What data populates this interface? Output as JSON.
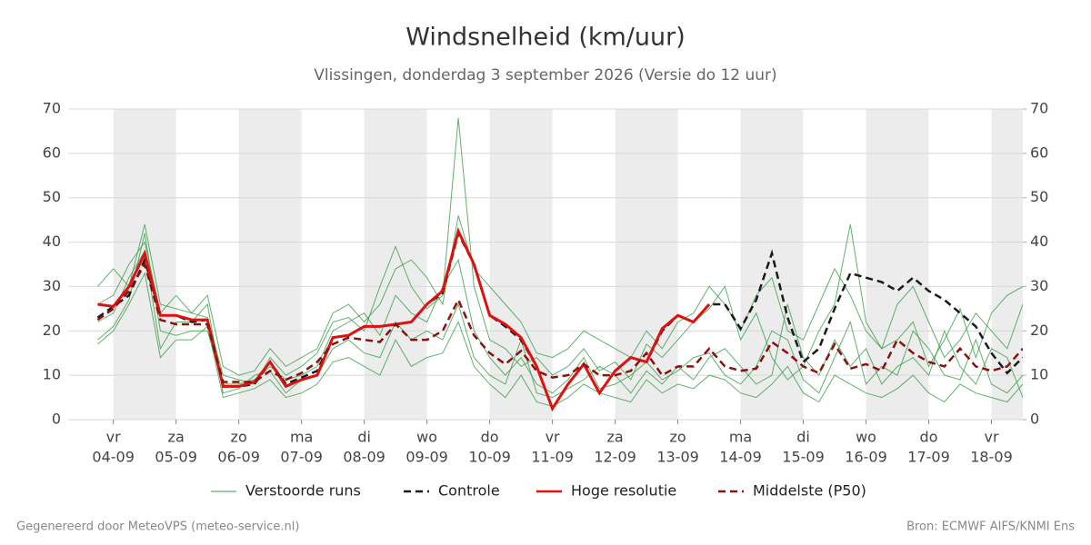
{
  "chart_data": {
    "type": "line",
    "title": "Windsnelheid (km/uur)",
    "subtitle": "Vlissingen, donderdag  3 september 2026 (Versie do 12 uur)",
    "x": [
      -0.25,
      0,
      0.25,
      0.5,
      0.75,
      1,
      1.25,
      1.5,
      1.75,
      2,
      2.25,
      2.5,
      2.75,
      3,
      3.25,
      3.5,
      3.75,
      4,
      4.25,
      4.5,
      4.75,
      5,
      5.25,
      5.5,
      5.75,
      6,
      6.25,
      6.5,
      6.75,
      7,
      7.25,
      7.5,
      7.75,
      8,
      8.25,
      8.5,
      8.75,
      9,
      9.25,
      9.5,
      9.75,
      10,
      10.25,
      10.5,
      10.75,
      11,
      11.25,
      11.5,
      11.75,
      12,
      12.25,
      12.5,
      12.75,
      13,
      13.25,
      13.5,
      13.75,
      14,
      14.25,
      14.5
    ],
    "xlim": [
      -0.72,
      14.5
    ],
    "xticks": [
      {
        "value": 0,
        "label": [
          "vr",
          "04-09"
        ]
      },
      {
        "value": 1,
        "label": [
          "za",
          "05-09"
        ]
      },
      {
        "value": 2,
        "label": [
          "zo",
          "06-09"
        ]
      },
      {
        "value": 3,
        "label": [
          "ma",
          "07-09"
        ]
      },
      {
        "value": 4,
        "label": [
          "di",
          "08-09"
        ]
      },
      {
        "value": 5,
        "label": [
          "wo",
          "09-09"
        ]
      },
      {
        "value": 6,
        "label": [
          "do",
          "10-09"
        ]
      },
      {
        "value": 7,
        "label": [
          "vr",
          "11-09"
        ]
      },
      {
        "value": 8,
        "label": [
          "za",
          "12-09"
        ]
      },
      {
        "value": 9,
        "label": [
          "zo",
          "13-09"
        ]
      },
      {
        "value": 10,
        "label": [
          "ma",
          "14-09"
        ]
      },
      {
        "value": 11,
        "label": [
          "di",
          "15-09"
        ]
      },
      {
        "value": 12,
        "label": [
          "wo",
          "16-09"
        ]
      },
      {
        "value": 13,
        "label": [
          "do",
          "17-09"
        ]
      },
      {
        "value": 14,
        "label": [
          "vr",
          "18-09"
        ]
      }
    ],
    "shade_alternate_days": true,
    "ylim": [
      0,
      70
    ],
    "yticks": [
      0,
      10,
      20,
      30,
      40,
      50,
      60,
      70
    ],
    "y2lim": [
      0,
      70
    ],
    "y2ticks": [
      0,
      10,
      20,
      30,
      40,
      50,
      60,
      70
    ],
    "grid": true,
    "ensemble": {
      "name": "Verstoorde runs",
      "color": "#3a9e48",
      "runs": [
        [
          18,
          21,
          27,
          42,
          20,
          19,
          20,
          20,
          8,
          8,
          9,
          12,
          9,
          10,
          12,
          20,
          22,
          24,
          19,
          28,
          24,
          22,
          30,
          36,
          20,
          14,
          10,
          14,
          8,
          6,
          9,
          14,
          7,
          8,
          10,
          13,
          9,
          11,
          14,
          15,
          10,
          8,
          12,
          20,
          18,
          9,
          6,
          14,
          22,
          8,
          12,
          10,
          20,
          16,
          10,
          9,
          18,
          8,
          6,
          10
        ],
        [
          30,
          34,
          30,
          44,
          26,
          25,
          24,
          23,
          10,
          9,
          8,
          14,
          10,
          12,
          15,
          22,
          23,
          20,
          30,
          39,
          30,
          25,
          28,
          68,
          30,
          18,
          16,
          12,
          14,
          10,
          12,
          16,
          11,
          13,
          9,
          17,
          14,
          18,
          22,
          25,
          30,
          18,
          24,
          14,
          9,
          12,
          20,
          26,
          44,
          22,
          16,
          18,
          22,
          12,
          18,
          25,
          14,
          24,
          28,
          30
        ],
        [
          22,
          24,
          32,
          38,
          16,
          22,
          22,
          26,
          6,
          7,
          10,
          11,
          6,
          9,
          10,
          16,
          18,
          15,
          14,
          22,
          18,
          20,
          18,
          26,
          14,
          10,
          8,
          18,
          6,
          5,
          7,
          9,
          12,
          10,
          6,
          11,
          8,
          12,
          9,
          14,
          16,
          12,
          8,
          10,
          26,
          14,
          10,
          18,
          12,
          16,
          8,
          12,
          14,
          10,
          20,
          12,
          8,
          16,
          14,
          5
        ],
        [
          26,
          28,
          35,
          40,
          24,
          28,
          24,
          28,
          12,
          10,
          11,
          16,
          12,
          14,
          16,
          24,
          26,
          22,
          26,
          34,
          36,
          32,
          26,
          46,
          34,
          30,
          26,
          22,
          15,
          14,
          16,
          20,
          18,
          16,
          14,
          20,
          16,
          22,
          24,
          30,
          26,
          20,
          28,
          32,
          20,
          18,
          26,
          34,
          28,
          20,
          16,
          26,
          30,
          22,
          14,
          18,
          24,
          20,
          16,
          26
        ],
        [
          17,
          20,
          26,
          33,
          14,
          18,
          18,
          21,
          5,
          6,
          7,
          9,
          5,
          6,
          8,
          13,
          14,
          12,
          10,
          18,
          12,
          14,
          15,
          22,
          12,
          8,
          5,
          10,
          4,
          3,
          5,
          8,
          6,
          5,
          4,
          9,
          6,
          8,
          7,
          10,
          9,
          6,
          5,
          8,
          12,
          6,
          4,
          10,
          8,
          6,
          5,
          7,
          10,
          6,
          4,
          8,
          6,
          5,
          4,
          8
        ]
      ]
    },
    "series": [
      {
        "name": "Controle",
        "color": "#1a1a1a",
        "dashed": true,
        "values": [
          23,
          25.5,
          28,
          36,
          23.5,
          23.5,
          22,
          22.5,
          7.5,
          7.5,
          8,
          13,
          8,
          9.5,
          11,
          18.5,
          19,
          21,
          21,
          21.5,
          22,
          26,
          28.5,
          42,
          35,
          23.5,
          21,
          18,
          12,
          2.5,
          8,
          12.5,
          6,
          11,
          14,
          13,
          20,
          23.5,
          22,
          26,
          26,
          20.5,
          27,
          37.5,
          23,
          13,
          16,
          25,
          33,
          32,
          31,
          29,
          32,
          29,
          27,
          24,
          21,
          15,
          10.5,
          14
        ]
      },
      {
        "name": "Hoge resolutie",
        "color": "#e01010",
        "dashed": false,
        "values": [
          26,
          25.5,
          30,
          37.5,
          23.5,
          23.5,
          22.5,
          22.5,
          7.5,
          7.5,
          8.5,
          13,
          7.5,
          9,
          10,
          18.5,
          19,
          21,
          21,
          21.5,
          22,
          26,
          29,
          42.5,
          35,
          23.5,
          21.5,
          18.5,
          12,
          2.5,
          8,
          12.5,
          6,
          11,
          14,
          13,
          20.5,
          23.5,
          22,
          26,
          null,
          null,
          null,
          null,
          null,
          null,
          null,
          null,
          null,
          null,
          null,
          null,
          null,
          null,
          null,
          null,
          null,
          null,
          null,
          null
        ]
      },
      {
        "name": "Middelste (P50)",
        "color": "#8b1010",
        "dashed": true,
        "values": [
          22.5,
          25,
          29,
          35,
          22.5,
          21.5,
          21.5,
          21.5,
          8.5,
          8.5,
          8.5,
          11,
          9,
          10.5,
          13,
          17,
          18.5,
          18,
          17.5,
          21.5,
          18,
          18,
          20,
          27,
          19,
          15,
          12.5,
          15.5,
          11,
          9.5,
          10,
          12.5,
          10,
          10,
          11,
          15,
          10,
          12,
          12,
          16,
          12,
          11,
          11.5,
          17.5,
          15,
          12,
          10.5,
          17,
          11.5,
          12.5,
          11,
          18,
          15,
          13,
          12,
          16,
          12,
          11,
          12,
          16
        ]
      }
    ],
    "footer_left": "Gegenereerd door MeteoVPS (meteo-service.nl)",
    "footer_right": "Bron: ECMWF AIFS/KNMI Ens"
  }
}
